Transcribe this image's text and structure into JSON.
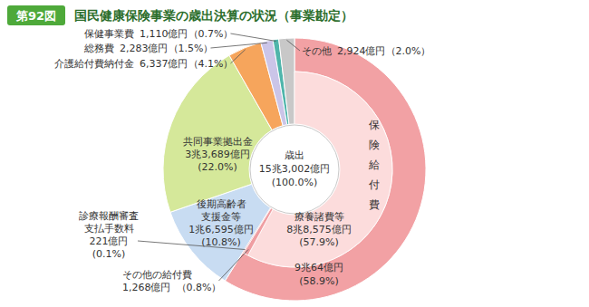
{
  "chart_data": {
    "type": "pie",
    "figure_label": "第92図",
    "title": "国民健康保険事業の歳出決算の状況（事業勘定）",
    "center": {
      "label": "歳出",
      "value": 153002,
      "value_label": "15兆3,002億円",
      "percent_label": "(100.0%)"
    },
    "categories": [
      "保険給付費",
      "後期高齢者\n支援金等",
      "共同事業拠出金",
      "介護給付費納付金",
      "総務費",
      "保健事業費",
      "その他"
    ],
    "values": [
      90064,
      16595,
      33689,
      6337,
      2283,
      1110,
      2924
    ],
    "value_labels": [
      "9兆64億円",
      "1兆6,595億円",
      "3兆3,689億円",
      "6,337億円",
      "2,283億円",
      "1,110億円",
      "2,924億円"
    ],
    "percent_labels": [
      "(58.9%)",
      "(10.8%)",
      "(22.0%)",
      "（4.1%）",
      "（1.5%）",
      "（0.7%）",
      "（2.0%）"
    ],
    "colors": [
      "#f2a1a4",
      "#c8dcf2",
      "#d5e89a",
      "#f6a55c",
      "#cbc5e8",
      "#4fb5ab",
      "#c8c8c8"
    ],
    "breakdown": {
      "categories": [
        "療養諸費等",
        "その他の給付費",
        "診療報酬審査\n支払手数料"
      ],
      "values": [
        88575,
        1268,
        221
      ],
      "value_labels": [
        "8兆8,575億円",
        "1,268億円",
        "221億円"
      ],
      "percent_labels": [
        "(57.9%)",
        "（0.8%）",
        "(0.1%)"
      ],
      "colors": [
        "#fcdcdc",
        "#ef9ea2",
        "#e07f85"
      ]
    },
    "data_labels": true
  }
}
